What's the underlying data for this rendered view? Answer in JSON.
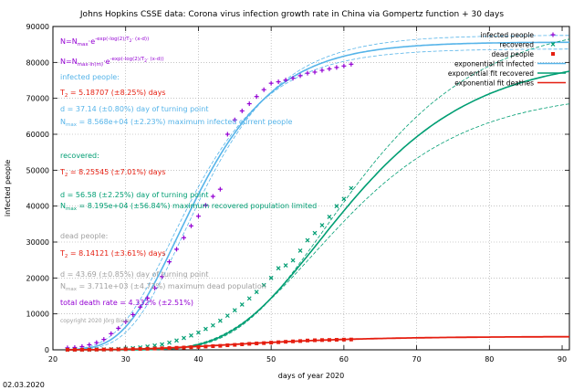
{
  "chart_data": {
    "type": "scatter",
    "title": "Johns Hopkins CSSE data: Corona virus infection growth rate in China via Gompertz function + 30 days",
    "xlabel": "days of year 2020",
    "ylabel": "infected people",
    "xlim": [
      20,
      91
    ],
    "ylim": [
      0,
      90000
    ],
    "x_ticks": [
      20,
      30,
      40,
      50,
      60,
      70,
      80,
      90
    ],
    "y_ticks": [
      0,
      10000,
      20000,
      30000,
      40000,
      50000,
      60000,
      70000,
      80000,
      90000
    ],
    "grid": true,
    "legend_position": "top-right",
    "date_label": "02.03.2020",
    "colors": {
      "infected": "#9400d3",
      "recovered": "#009e73",
      "dead": "#e51e10",
      "fit_infected": "#56b4e9",
      "fit_recovered": "#009e73",
      "fit_dead": "#e51e10"
    },
    "series": [
      {
        "name": "infected people",
        "kind": "points",
        "color_key": "infected",
        "x": [
          22,
          23,
          24,
          25,
          26,
          27,
          28,
          29,
          30,
          31,
          32,
          33,
          34,
          35,
          36,
          37,
          38,
          39,
          40,
          41,
          42,
          43,
          44,
          45,
          46,
          47,
          48,
          49,
          50,
          51,
          52,
          53,
          54,
          55,
          56,
          57,
          58,
          59,
          60,
          61
        ],
        "y": [
          550,
          650,
          900,
          1400,
          2000,
          2900,
          4500,
          6000,
          7800,
          9800,
          11900,
          14400,
          17200,
          20400,
          24500,
          28000,
          31200,
          34500,
          37200,
          40200,
          42700,
          44700,
          60000,
          64000,
          66500,
          68500,
          70500,
          72400,
          74200,
          74600,
          75100,
          75600,
          76300,
          77000,
          77300,
          77800,
          78200,
          78600,
          79000,
          79500
        ]
      },
      {
        "name": "recovered",
        "kind": "points",
        "color_key": "recovered",
        "x": [
          22,
          23,
          24,
          25,
          26,
          27,
          28,
          29,
          30,
          31,
          32,
          33,
          34,
          35,
          36,
          37,
          38,
          39,
          40,
          41,
          42,
          43,
          44,
          45,
          46,
          47,
          48,
          49,
          50,
          51,
          52,
          53,
          54,
          55,
          56,
          57,
          58,
          59,
          60,
          61
        ],
        "y": [
          30,
          40,
          50,
          60,
          100,
          130,
          170,
          240,
          340,
          480,
          650,
          900,
          1200,
          1500,
          2000,
          2600,
          3300,
          4000,
          4800,
          5800,
          6800,
          8100,
          9500,
          11000,
          12600,
          14300,
          16100,
          18000,
          20000,
          22700,
          23500,
          24900,
          27600,
          30500,
          32500,
          34700,
          37000,
          40000,
          42000,
          45000
        ]
      },
      {
        "name": "dead people",
        "kind": "points",
        "color_key": "dead",
        "x": [
          22,
          23,
          24,
          25,
          26,
          27,
          28,
          29,
          30,
          31,
          32,
          33,
          34,
          35,
          36,
          37,
          38,
          39,
          40,
          41,
          42,
          43,
          44,
          45,
          46,
          47,
          48,
          49,
          50,
          51,
          52,
          53,
          54,
          55,
          56,
          57,
          58,
          59,
          60,
          61
        ],
        "y": [
          17,
          18,
          26,
          42,
          56,
          82,
          106,
          132,
          170,
          213,
          259,
          304,
          361,
          425,
          490,
          562,
          636,
          722,
          811,
          908,
          1016,
          1113,
          1259,
          1380,
          1523,
          1665,
          1770,
          1868,
          2004,
          2118,
          2236,
          2345,
          2442,
          2592,
          2663,
          2715,
          2744,
          2788,
          2835,
          2870
        ]
      },
      {
        "name": "exponential fit infected",
        "kind": "fit",
        "color_key": "fit_infected",
        "model": {
          "d": 37.14,
          "Tc": 5.18707,
          "Nmax": 85680,
          "band": 0.0223
        }
      },
      {
        "name": "exponential fit recovered",
        "kind": "fit",
        "color_key": "fit_recovered",
        "model": {
          "d": 56.58,
          "Tc": 8.25545,
          "Nmax": 81950,
          "band": 0.12
        }
      },
      {
        "name": "exponential fit deathes",
        "kind": "fit",
        "color_key": "fit_dead",
        "model": {
          "d": 43.69,
          "Tc": 8.14121,
          "Nmax": 3711,
          "band": 0.0
        }
      }
    ],
    "annotations": [
      {
        "text": "N=N",
        "sub": "max",
        "tail": "·e",
        "sup": "-exp(-log(2)/T",
        "sup2": "2",
        "sup3": "· (x-d))",
        "color": "#9400d3",
        "row": 0
      },
      {
        "text": "N=N",
        "sub": "max·ln(m)",
        "tail": "·e",
        "sup": "-exp(-log(2)/T",
        "sup2": "2",
        "sup3": "· (x-d))",
        "color": "#9400d3",
        "row": 1
      },
      {
        "text": "infected people:",
        "color": "#56b4e9",
        "row": 2
      },
      {
        "text": "T",
        "sub": "2",
        "tail": " = 5.18707 (±8.25%) days",
        "color": "#e51e10",
        "row": 3
      },
      {
        "text": "d = 37.14 (±0.80%) day of turning point",
        "color": "#56b4e9",
        "row": 4
      },
      {
        "text": "N",
        "sub": "max",
        "tail": " = 8.568e+04 (±2.23%) maximum infected current people",
        "color": "#56b4e9",
        "row": 5
      },
      {
        "text": "recovered:",
        "color": "#009e73",
        "row": 6
      },
      {
        "text": "T",
        "sub": "2",
        "tail": " = 8.25545 (±7.01%) days",
        "color": "#e51e10",
        "row": 7
      },
      {
        "text": "d = 56.58 (±2.25%) day of turning point",
        "color": "#009e73",
        "row": 8
      },
      {
        "text": "N",
        "sub": "max",
        "tail": " = 8.195e+04 (±56.84%) maximum recovered population limited",
        "color": "#009e73",
        "row": 9
      },
      {
        "text": "dead people:",
        "color": "#a0a0a0",
        "row": 10
      },
      {
        "text": "T",
        "sub": "2",
        "tail": " = 8.14121 (±3.61%) days",
        "color": "#e51e10",
        "row": 11
      },
      {
        "text": "d = 43.69 (±0.85%) day of turning point",
        "color": "#a0a0a0",
        "row": 12
      },
      {
        "text": "N",
        "sub": "max",
        "tail": " = 3.711e+03 (±4.72%) maximum dead population",
        "color": "#a0a0a0",
        "row": 13
      },
      {
        "text": "total death rate = 4.332% (±2.51%)",
        "color": "#9400d3",
        "row": 14
      },
      {
        "text": "copyright 2020  Jörg Bieler",
        "color": "#a0a0a0",
        "row": 15
      }
    ]
  }
}
